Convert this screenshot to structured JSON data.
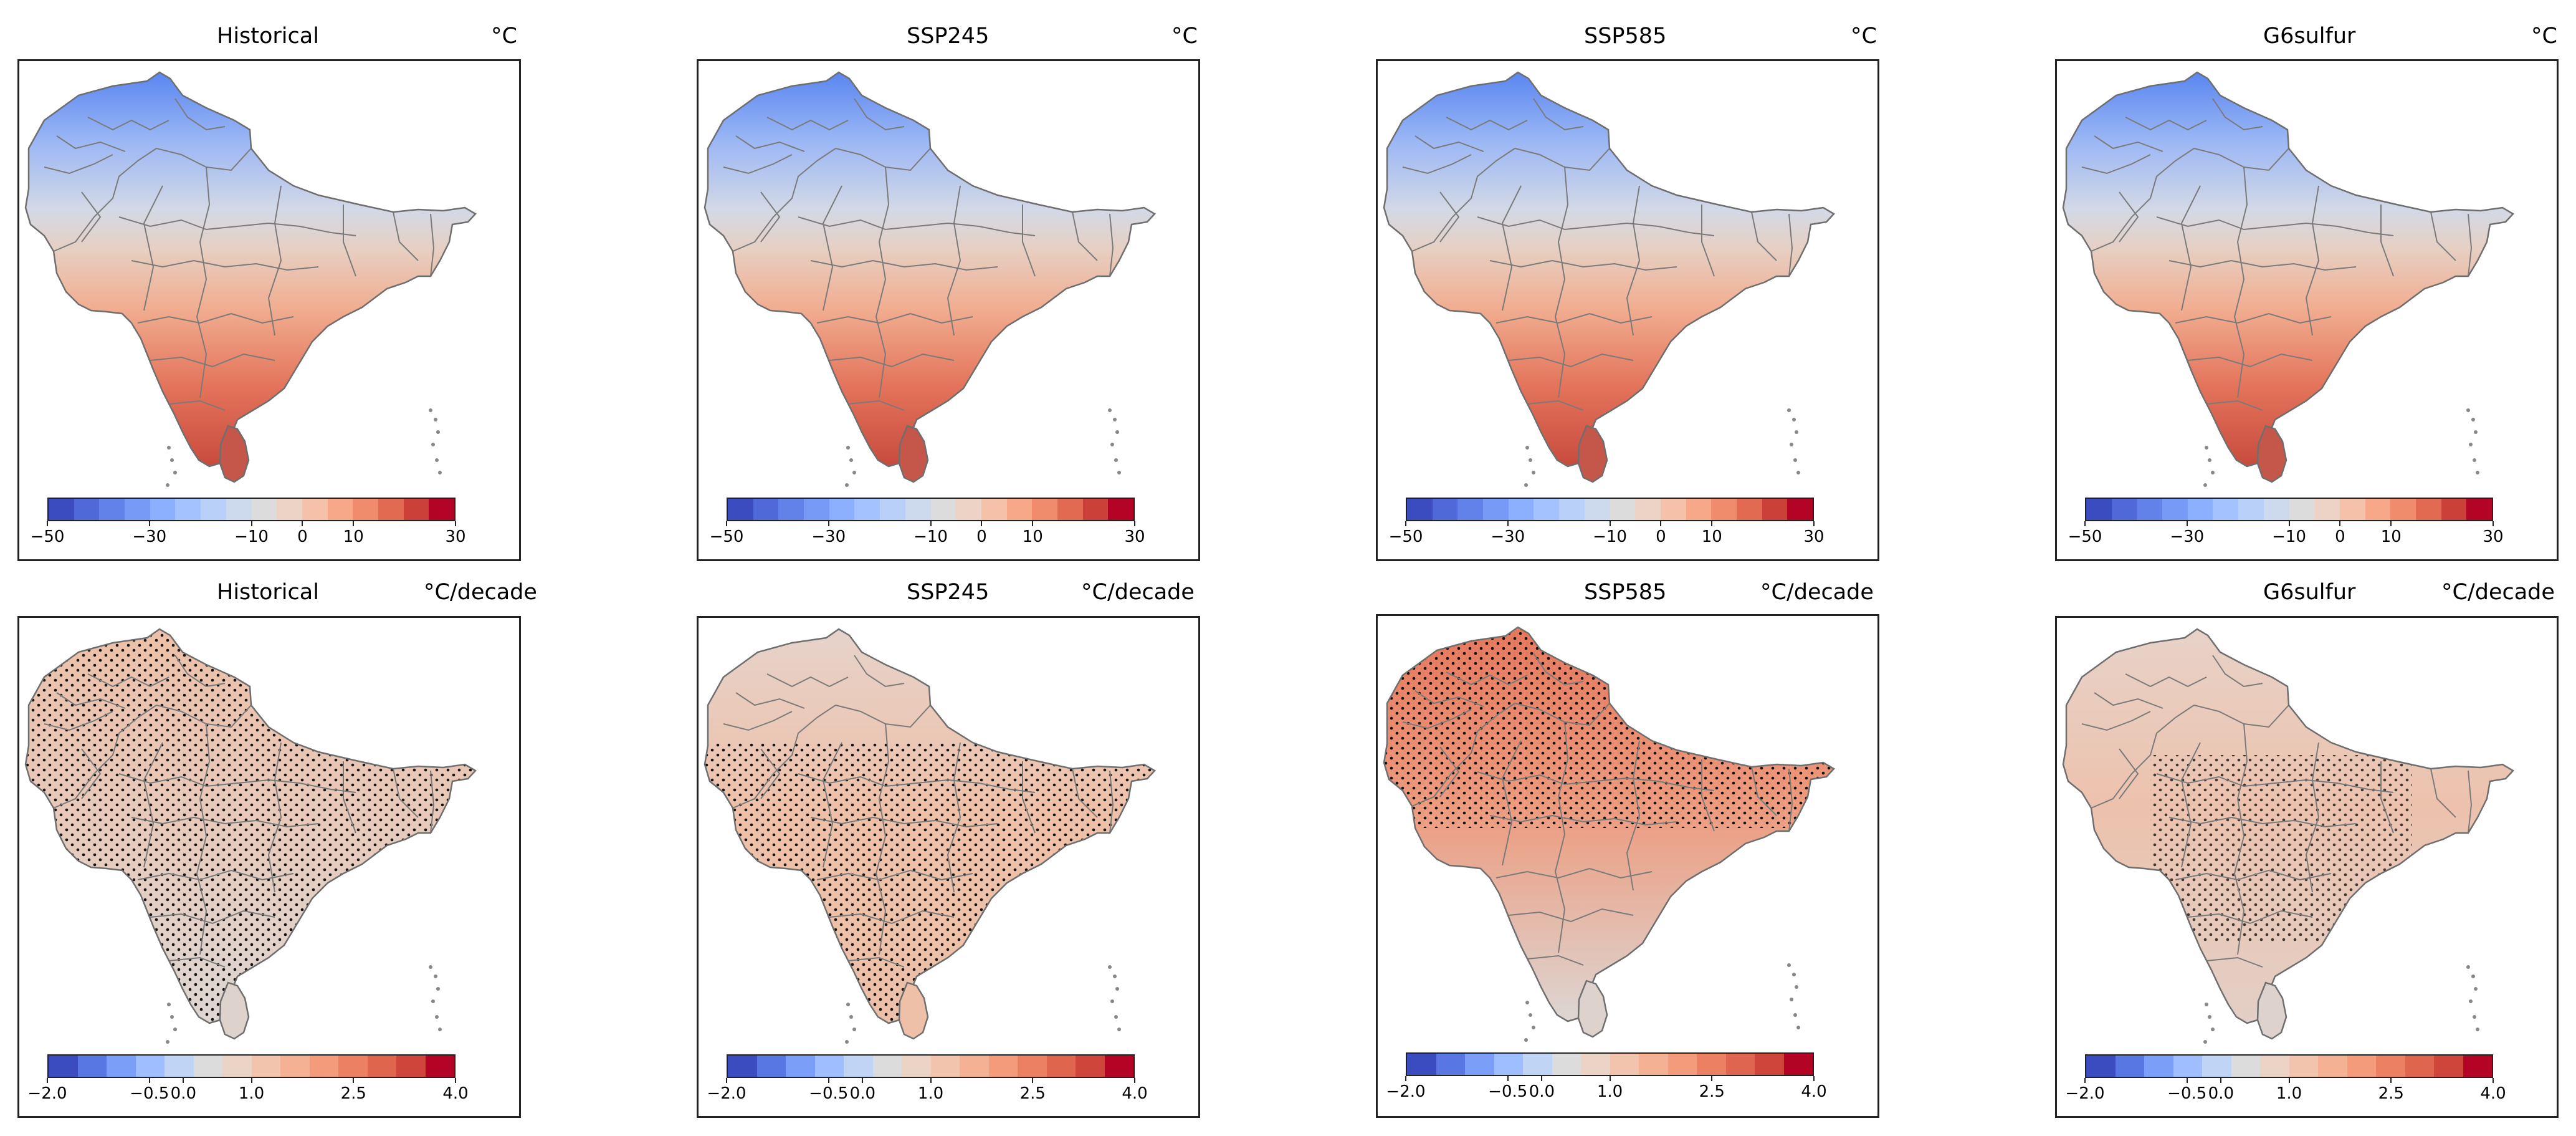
{
  "figure": {
    "rows": [
      {
        "row_id": "climatology",
        "unit": "°C",
        "colorbar": {
          "min": -50,
          "max": 30,
          "ticks": [
            {
              "value": -50,
              "label": "−50"
            },
            {
              "value": -30,
              "label": "−30"
            },
            {
              "value": -10,
              "label": "−10"
            },
            {
              "value": 0,
              "label": "0"
            },
            {
              "value": 10,
              "label": "10"
            },
            {
              "value": 30,
              "label": "30"
            }
          ],
          "colors": [
            "#3b4cc0",
            "#4f69d9",
            "#6282ea",
            "#779af7",
            "#8db0fe",
            "#a3c2fe",
            "#b9d0f9",
            "#cdd9ec",
            "#dddcdc",
            "#ecd3c5",
            "#f5c1a9",
            "#f7a889",
            "#f08b6e",
            "#e26952",
            "#cc403a",
            "#b40426"
          ]
        },
        "panels": [
          {
            "title": "Historical"
          },
          {
            "title": "SSP245"
          },
          {
            "title": "SSP585"
          },
          {
            "title": "G6sulfur"
          }
        ]
      },
      {
        "row_id": "trend",
        "unit": "°C/decade",
        "colorbar": {
          "min": -2.0,
          "max": 4.0,
          "ticks": [
            {
              "value": -2.0,
              "label": "−2.0"
            },
            {
              "value": -0.5,
              "label": "−0.5"
            },
            {
              "value": 0.0,
              "label": "0.0"
            },
            {
              "value": 1.0,
              "label": "1.0"
            },
            {
              "value": 2.5,
              "label": "2.5"
            },
            {
              "value": 4.0,
              "label": "4.0"
            }
          ],
          "colors": [
            "#3b4cc0",
            "#5977e3",
            "#7b9ff9",
            "#9ebeff",
            "#c0d4f5",
            "#dddcdc",
            "#ebd3c6",
            "#f2c4ae",
            "#f5b194",
            "#f39b7a",
            "#ec8063",
            "#e0654f",
            "#cf453c",
            "#b40426"
          ]
        },
        "panels": [
          {
            "title": "Historical"
          },
          {
            "title": "SSP245"
          },
          {
            "title": "SSP585"
          },
          {
            "title": "G6sulfur"
          }
        ]
      }
    ]
  }
}
